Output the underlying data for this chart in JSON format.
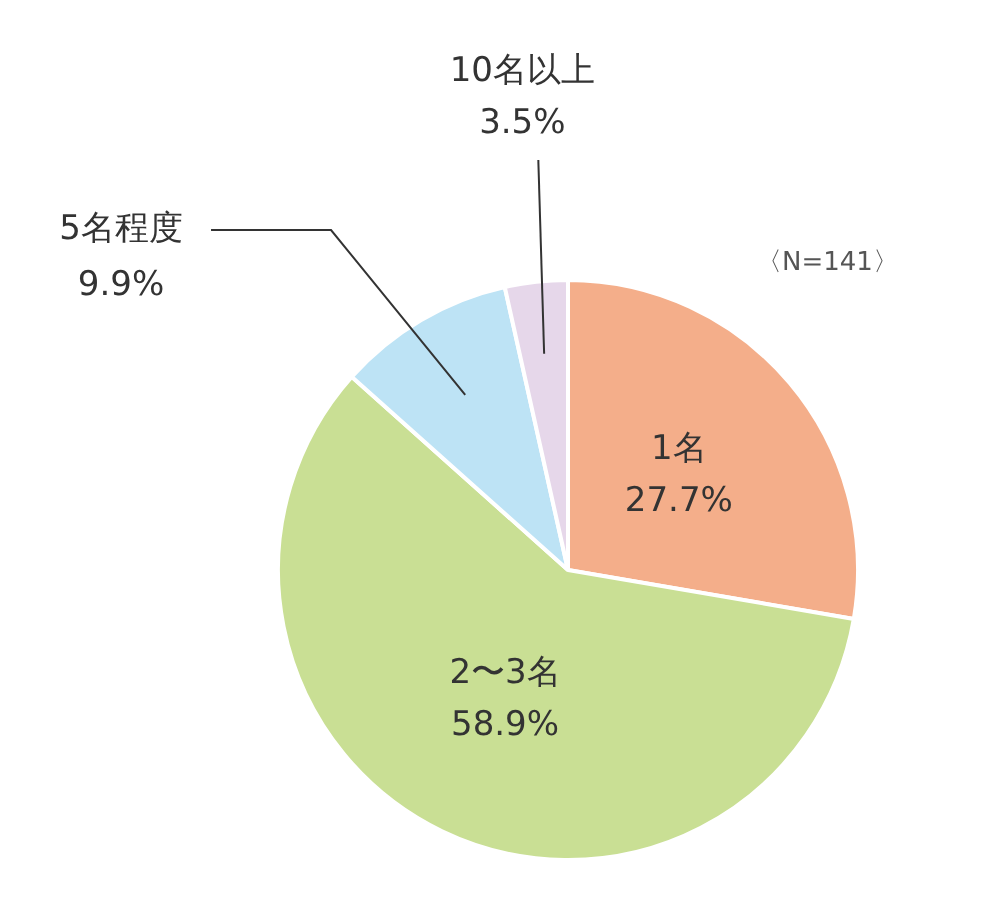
{
  "chart_data": {
    "type": "pie",
    "categories": [
      "1名",
      "2〜3名",
      "5名程度",
      "10名以上"
    ],
    "values": [
      27.7,
      58.9,
      9.9,
      3.5
    ],
    "value_labels": [
      "27.7%",
      "58.9%",
      "9.9%",
      "3.5%"
    ],
    "colors": [
      "#f4ae8a",
      "#c9df94",
      "#bde3f5",
      "#e6d7ea"
    ],
    "annotations": [
      "〈N=141〉"
    ],
    "legend": false
  }
}
